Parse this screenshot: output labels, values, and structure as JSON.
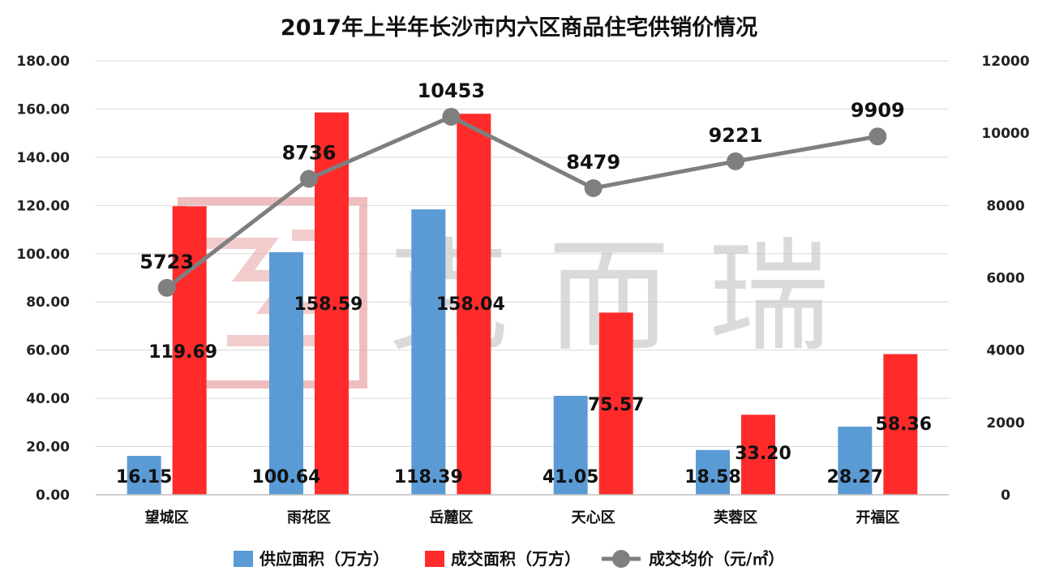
{
  "chart_data": {
    "type": "bar",
    "title": "2017年上半年长沙市内六区商品住宅供销价情况",
    "categories": [
      "望城区",
      "雨花区",
      "岳麓区",
      "天心区",
      "芙蓉区",
      "开福区"
    ],
    "series": [
      {
        "name": "供应面积（万方）",
        "kind": "bar",
        "axis": "left",
        "color": "#5b9bd5",
        "values": [
          16.15,
          100.64,
          118.39,
          41.05,
          18.58,
          28.27
        ],
        "labels": [
          "16.15",
          "100.64",
          "118.39",
          "41.05",
          "18.58",
          "28.27"
        ]
      },
      {
        "name": "成交面积（万方）",
        "kind": "bar",
        "axis": "left",
        "color": "#ff2b2b",
        "values": [
          119.69,
          158.59,
          158.04,
          75.57,
          33.2,
          58.36
        ],
        "labels": [
          "119.69",
          "158.59",
          "158.04",
          "75.57",
          "33.20",
          "58.36"
        ]
      },
      {
        "name": "成交均价（元/㎡）",
        "kind": "line",
        "axis": "right",
        "color": "#7f7f7f",
        "values": [
          5723,
          8736,
          10453,
          8479,
          9221,
          9909
        ],
        "labels": [
          "5723",
          "8736",
          "10453",
          "8479",
          "9221",
          "9909"
        ],
        "highlight_color": "#e8191b"
      }
    ],
    "y_left": {
      "min": 0,
      "max": 180,
      "ticks": [
        "0.00",
        "20.00",
        "40.00",
        "60.00",
        "80.00",
        "100.00",
        "120.00",
        "140.00",
        "160.00",
        "180.00"
      ]
    },
    "y_right": {
      "min": 0,
      "max": 12000,
      "ticks": [
        "0",
        "2000",
        "4000",
        "6000",
        "8000",
        "10000",
        "12000"
      ]
    },
    "grid": true,
    "legend_position": "bottom",
    "watermark": {
      "text": "克 而 瑞",
      "seal": "易居"
    }
  }
}
